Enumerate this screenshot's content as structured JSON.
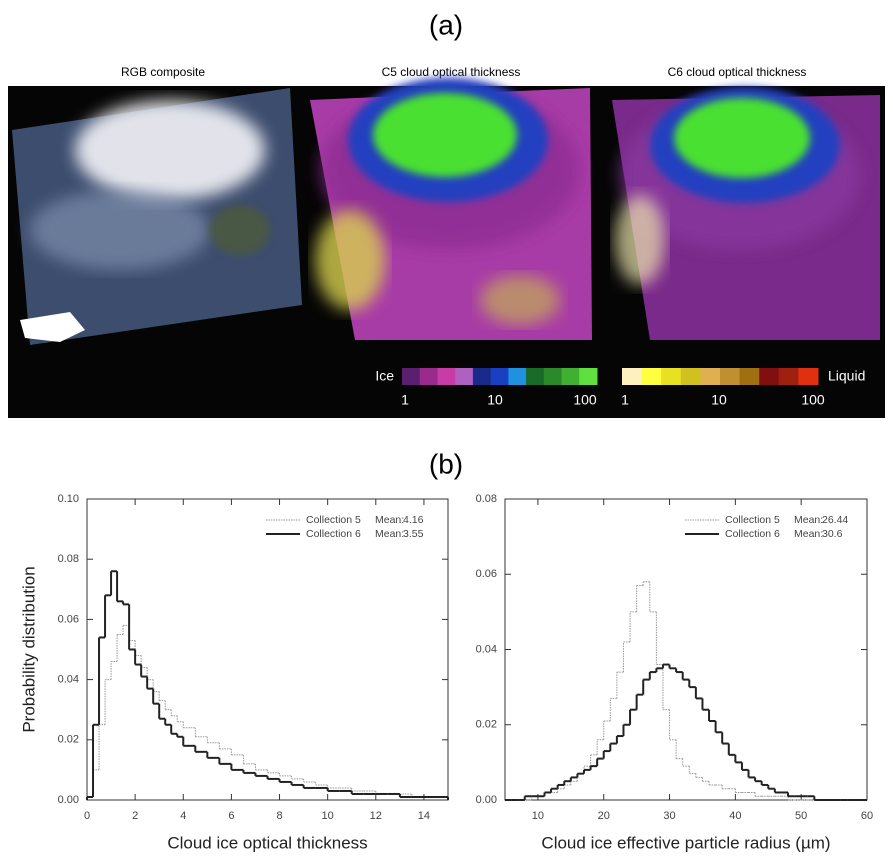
{
  "panel_a": {
    "label": "(a)",
    "images": [
      {
        "title": "RGB composite"
      },
      {
        "title": "C5 cloud optical thickness"
      },
      {
        "title": "C6 cloud optical thickness"
      }
    ],
    "colorbars": [
      {
        "label": "Ice",
        "scale": "log",
        "range": [
          1,
          100
        ],
        "ticks": [
          1,
          10,
          100
        ],
        "colors": [
          "#5a1f6e",
          "#9a2a8c",
          "#c83ca8",
          "#b060c0",
          "#1a2a8a",
          "#1840c0",
          "#2090e0",
          "#1a6a2a",
          "#2a8a2a",
          "#40b030",
          "#60e040"
        ]
      },
      {
        "label": "Liquid",
        "scale": "log",
        "range": [
          1,
          100
        ],
        "ticks": [
          1,
          10,
          100
        ],
        "colors": [
          "#fff0c0",
          "#ffff40",
          "#e8e020",
          "#d0c020",
          "#e0b050",
          "#c09030",
          "#a07010",
          "#801010",
          "#a02010",
          "#e03010"
        ]
      }
    ]
  },
  "panel_b_label": "(b)",
  "chart_data": [
    {
      "type": "histogram",
      "xlabel": "Cloud ice optical thickness",
      "ylabel": "Probability distribution",
      "mean_label": "Mean:",
      "xlim": [
        0,
        15
      ],
      "xticks": [
        0,
        2,
        4,
        6,
        8,
        10,
        12,
        14
      ],
      "ylim": [
        0,
        0.1
      ],
      "yticks": [
        {
          "value": 0,
          "label": "0.00"
        },
        {
          "value": 0.02,
          "label": "0.02"
        },
        {
          "value": 0.04,
          "label": "0.04"
        },
        {
          "value": 0.06,
          "label": "0.06"
        },
        {
          "value": 0.08,
          "label": "0.08"
        },
        {
          "value": 0.1,
          "label": "0.10"
        }
      ],
      "bins": [
        0,
        0.25,
        0.5,
        0.75,
        1,
        1.25,
        1.5,
        1.75,
        2,
        2.25,
        2.5,
        2.75,
        3,
        3.25,
        3.5,
        3.75,
        4,
        4.5,
        5,
        5.5,
        6,
        6.5,
        7,
        7.5,
        8,
        8.5,
        9,
        9.5,
        10,
        10.5,
        11,
        11.5,
        12,
        12.5,
        13,
        13.5,
        14,
        14.5,
        15
      ],
      "series": [
        {
          "name": "Collection 5",
          "mean": 4.16,
          "color": "#999999",
          "line_width": 1,
          "values": [
            0.001,
            0.01,
            0.025,
            0.04,
            0.046,
            0.055,
            0.058,
            0.053,
            0.048,
            0.044,
            0.04,
            0.036,
            0.033,
            0.03,
            0.028,
            0.026,
            0.024,
            0.021,
            0.019,
            0.017,
            0.015,
            0.012,
            0.01,
            0.009,
            0.008,
            0.007,
            0.006,
            0.005,
            0.004,
            0.004,
            0.003,
            0.003,
            0.002,
            0.002,
            0.002,
            0.001,
            0.001,
            0.001
          ]
        },
        {
          "name": "Collection 6",
          "mean": 3.55,
          "color": "#222222",
          "line_width": 2,
          "values": [
            0.001,
            0.025,
            0.054,
            0.068,
            0.076,
            0.066,
            0.065,
            0.05,
            0.045,
            0.041,
            0.037,
            0.032,
            0.027,
            0.025,
            0.022,
            0.021,
            0.018,
            0.016,
            0.014,
            0.012,
            0.01,
            0.009,
            0.008,
            0.007,
            0.006,
            0.005,
            0.004,
            0.004,
            0.003,
            0.003,
            0.002,
            0.002,
            0.002,
            0.002,
            0.001,
            0.001,
            0.001,
            0.001
          ]
        }
      ]
    },
    {
      "type": "histogram",
      "xlabel": "Cloud ice effective particle radius (µm)",
      "mean_label": "Mean:",
      "xlim": [
        5,
        60
      ],
      "xticks": [
        10,
        20,
        30,
        40,
        50,
        60
      ],
      "ylim": [
        0,
        0.08
      ],
      "yticks": [
        {
          "value": 0,
          "label": "0.00"
        },
        {
          "value": 0.02,
          "label": "0.02"
        },
        {
          "value": 0.04,
          "label": "0.04"
        },
        {
          "value": 0.06,
          "label": "0.06"
        },
        {
          "value": 0.08,
          "label": "0.08"
        }
      ],
      "bins": [
        5,
        6,
        7,
        8,
        9,
        10,
        11,
        12,
        13,
        14,
        15,
        16,
        17,
        18,
        19,
        20,
        21,
        22,
        23,
        24,
        25,
        26,
        27,
        28,
        29,
        30,
        31,
        32,
        33,
        34,
        35,
        36,
        37,
        38,
        39,
        40,
        41,
        42,
        43,
        44,
        45,
        46,
        47,
        48,
        49,
        50,
        51,
        52,
        53,
        54,
        55,
        56,
        57,
        58,
        59,
        60
      ],
      "series": [
        {
          "name": "Collection 5",
          "mean": 26.44,
          "color": "#999999",
          "line_width": 1,
          "values": [
            0,
            0,
            0,
            0,
            0.001,
            0.001,
            0.002,
            0.002,
            0.003,
            0.004,
            0.005,
            0.007,
            0.009,
            0.012,
            0.016,
            0.021,
            0.027,
            0.034,
            0.042,
            0.05,
            0.057,
            0.058,
            0.05,
            0.036,
            0.024,
            0.016,
            0.011,
            0.009,
            0.007,
            0.006,
            0.005,
            0.004,
            0.004,
            0.003,
            0.003,
            0.002,
            0.002,
            0.002,
            0.001,
            0.001,
            0.001,
            0.001,
            0.001,
            0,
            0,
            0,
            0,
            0,
            0,
            0,
            0,
            0,
            0,
            0,
            0
          ]
        },
        {
          "name": "Collection 6",
          "mean": 30.6,
          "color": "#222222",
          "line_width": 2,
          "values": [
            0,
            0,
            0,
            0.001,
            0.001,
            0.001,
            0.002,
            0.003,
            0.004,
            0.005,
            0.006,
            0.007,
            0.008,
            0.009,
            0.011,
            0.013,
            0.015,
            0.017,
            0.02,
            0.024,
            0.028,
            0.032,
            0.034,
            0.035,
            0.036,
            0.035,
            0.034,
            0.032,
            0.03,
            0.027,
            0.024,
            0.021,
            0.018,
            0.015,
            0.012,
            0.01,
            0.008,
            0.006,
            0.005,
            0.004,
            0.003,
            0.002,
            0.002,
            0.001,
            0.001,
            0.001,
            0.001,
            0,
            0,
            0,
            0,
            0,
            0,
            0,
            0
          ]
        }
      ]
    }
  ]
}
